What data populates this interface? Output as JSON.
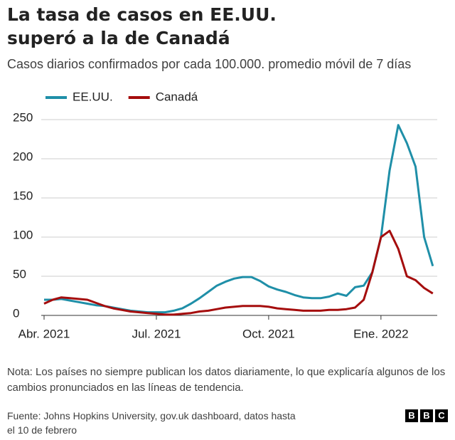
{
  "chart_data": {
    "type": "line",
    "title": [
      "La tasa de casos en EE.UU.",
      "superó a la de Canadá"
    ],
    "subtitle": "Casos diarios confirmados por cada 100.000. promedio móvil de 7 días",
    "note": "Nota: Los países no siempre publican los datos diariamente, lo que explicaría algunos de los cambios pronunciados en las líneas de tendencia.",
    "source": "Fuente: Johns Hopkins University, gov.uk dashboard, datos hasta el 10 de febrero",
    "logo": [
      "B",
      "B",
      "C"
    ],
    "categories": [
      "Abr. 2021",
      null,
      null,
      null,
      null,
      null,
      null,
      null,
      null,
      null,
      null,
      null,
      null,
      "Jul. 2021",
      null,
      null,
      null,
      null,
      null,
      null,
      null,
      null,
      null,
      null,
      null,
      null,
      "Oct. 2021",
      null,
      null,
      null,
      null,
      null,
      null,
      null,
      null,
      null,
      null,
      null,
      null,
      "Ene. 2022",
      null,
      null,
      null,
      null,
      null,
      null
    ],
    "series": [
      {
        "name": "EE.UU.",
        "color": "#1f8fa8",
        "values": [
          20,
          20,
          21,
          19,
          17,
          15,
          13,
          12,
          10,
          8,
          6,
          5,
          4,
          4,
          4,
          6,
          9,
          15,
          22,
          30,
          38,
          43,
          47,
          49,
          49,
          44,
          37,
          33,
          30,
          26,
          23,
          22,
          22,
          24,
          28,
          25,
          36,
          38,
          55,
          100,
          185,
          243,
          220,
          190,
          100,
          63
        ]
      },
      {
        "name": "Canadá",
        "color": "#a50d0d",
        "values": [
          15,
          20,
          23,
          22,
          21,
          20,
          16,
          12,
          9,
          7,
          5,
          4,
          3,
          2,
          1,
          1,
          2,
          3,
          5,
          6,
          8,
          10,
          11,
          12,
          12,
          12,
          11,
          9,
          8,
          7,
          6,
          6,
          6,
          7,
          7,
          8,
          10,
          20,
          55,
          100,
          108,
          85,
          50,
          45,
          35,
          28
        ]
      }
    ],
    "ylim": [
      0,
      250
    ],
    "yticks": [
      0,
      50,
      100,
      150,
      200,
      250
    ],
    "grid": true
  }
}
